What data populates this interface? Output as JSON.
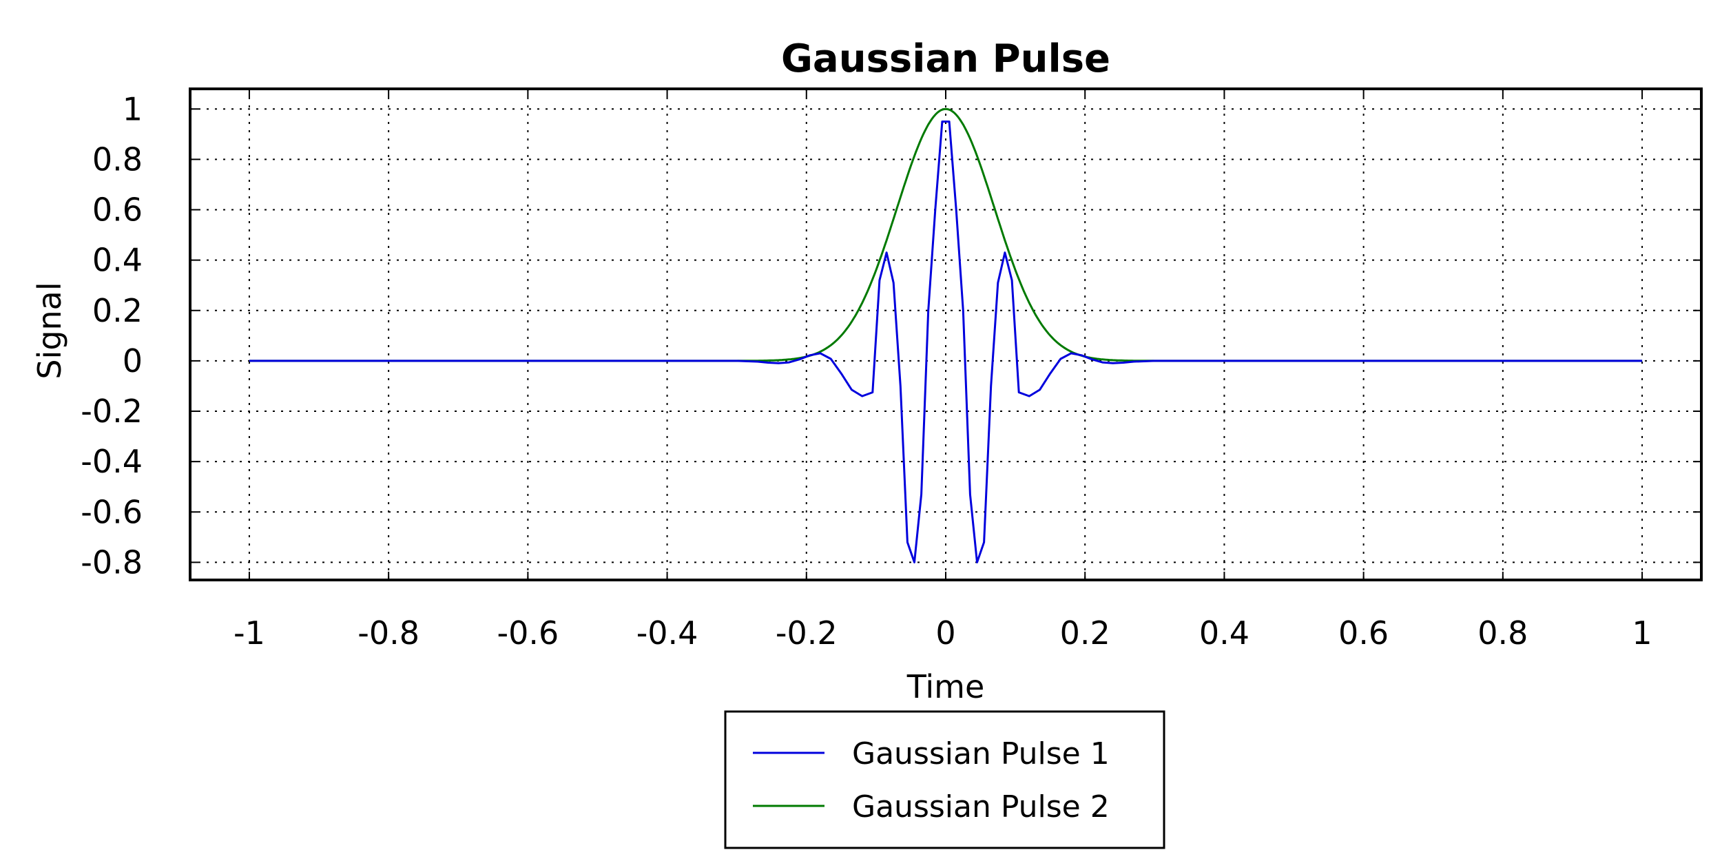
{
  "chart_data": {
    "type": "line",
    "title": "Gaussian Pulse",
    "xlabel": "Time",
    "ylabel": "Signal",
    "xlim": [
      -1.085,
      1.085
    ],
    "ylim": [
      -0.87,
      1.08
    ],
    "x_ticks": [
      -1,
      -0.8,
      -0.6,
      -0.4,
      -0.2,
      0,
      0.2,
      0.4,
      0.6,
      0.8,
      1
    ],
    "x_tick_labels": [
      "-1",
      "-0.8",
      "-0.6",
      "-0.4",
      "-0.2",
      "0",
      "0.2",
      "0.4",
      "0.6",
      "0.8",
      "1"
    ],
    "y_ticks": [
      1,
      0.8,
      0.6,
      0.4,
      0.2,
      0,
      -0.2,
      -0.4,
      -0.6,
      -0.8
    ],
    "y_tick_labels": [
      "1",
      "0.8",
      "0.6",
      "0.4",
      "0.2",
      "0",
      "-0.2",
      "-0.4",
      "-0.6",
      "-0.8"
    ],
    "grid": true,
    "legend_position": "bottom-center",
    "series": [
      {
        "name": "Gaussian Pulse 1",
        "color": "#0000dd",
        "x": [
          -1,
          -0.3,
          -0.27,
          -0.255,
          -0.24,
          -0.225,
          -0.21,
          -0.195,
          -0.18,
          -0.165,
          -0.15,
          -0.135,
          -0.12,
          -0.105,
          -0.095,
          -0.085,
          -0.075,
          -0.065,
          -0.055,
          -0.045,
          -0.035,
          -0.025,
          -0.015,
          -0.005,
          0.005,
          0.015,
          0.025,
          0.035,
          0.045,
          0.055,
          0.065,
          0.075,
          0.085,
          0.095,
          0.105,
          0.12,
          0.135,
          0.15,
          0.165,
          0.18,
          0.195,
          0.21,
          0.225,
          0.24,
          0.255,
          0.27,
          0.3,
          1
        ],
        "y": [
          0,
          0,
          -0.003,
          -0.007,
          -0.009,
          -0.006,
          0.006,
          0.022,
          0.03,
          0.008,
          -0.05,
          -0.115,
          -0.14,
          -0.125,
          0.32,
          0.43,
          0.31,
          -0.1,
          -0.72,
          -0.8,
          -0.53,
          0.2,
          0.6,
          0.95,
          0.95,
          0.6,
          0.2,
          -0.53,
          -0.8,
          -0.72,
          -0.1,
          0.31,
          0.43,
          0.32,
          -0.125,
          -0.14,
          -0.115,
          -0.05,
          0.008,
          0.03,
          0.022,
          0.006,
          -0.006,
          -0.009,
          -0.007,
          -0.003,
          0,
          0
        ]
      },
      {
        "name": "Gaussian Pulse 2",
        "color": "#007a00",
        "gaussian_sigma": 0.07,
        "x": [
          -1,
          1
        ]
      }
    ]
  }
}
